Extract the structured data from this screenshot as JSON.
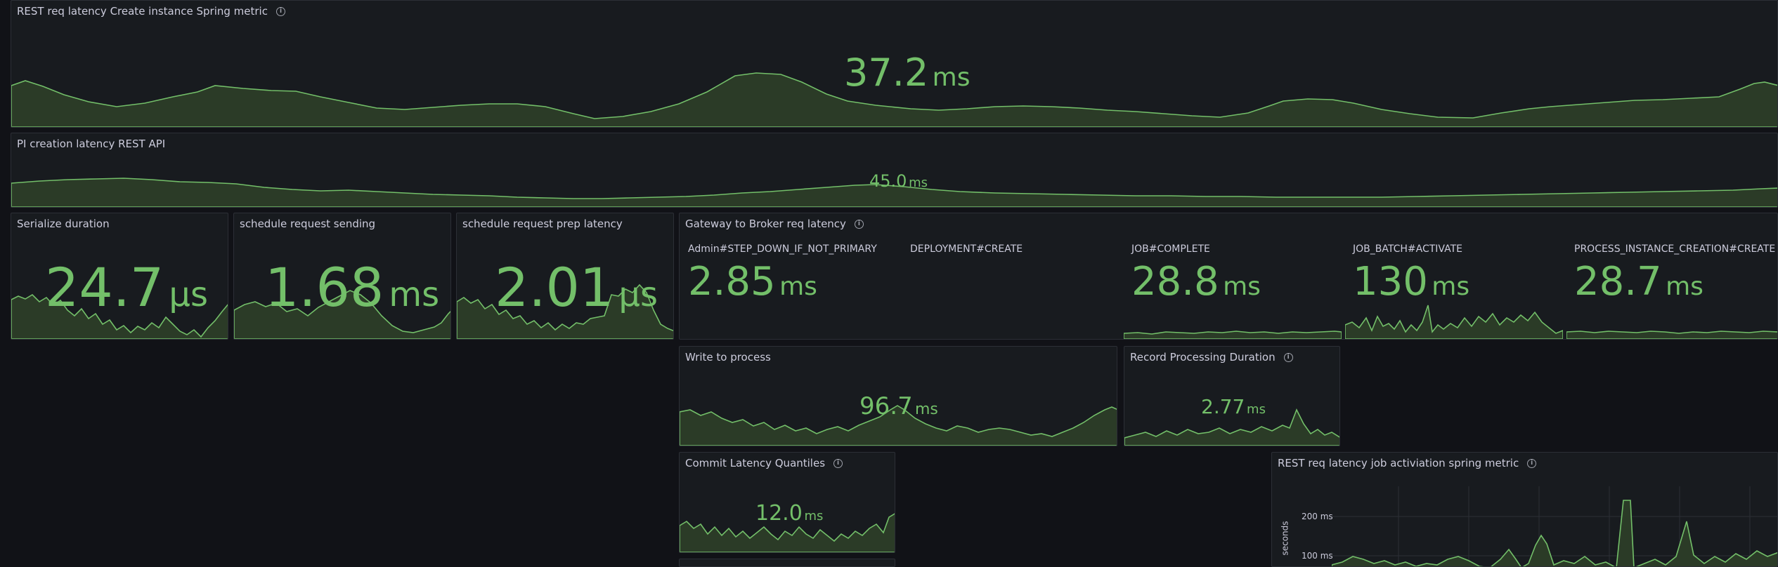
{
  "panels": {
    "create_instance": {
      "title": "REST req latency Create instance Spring metric",
      "value": "37.2",
      "unit": "ms"
    },
    "pi_creation": {
      "title": "PI creation latency REST API",
      "value": "45.0",
      "unit": "ms"
    },
    "serialize": {
      "title": "Serialize duration",
      "value": "24.7",
      "unit": "µs"
    },
    "schedule_sending": {
      "title": "schedule request sending",
      "value": "1.68",
      "unit": "ms"
    },
    "schedule_prep": {
      "title": "schedule request prep latency",
      "value": "2.01",
      "unit": "µs"
    },
    "gateway": {
      "title": "Gateway to Broker req latency",
      "items": [
        {
          "label": "Admin#STEP_DOWN_IF_NOT_PRIMARY",
          "value": "2.85",
          "unit": "ms"
        },
        {
          "label": "DEPLOYMENT#CREATE",
          "value": "",
          "unit": ""
        },
        {
          "label": "JOB#COMPLETE",
          "value": "28.8",
          "unit": "ms"
        },
        {
          "label": "JOB_BATCH#ACTIVATE",
          "value": "130",
          "unit": "ms"
        },
        {
          "label": "PROCESS_INSTANCE_CREATION#CREATE",
          "value": "28.7",
          "unit": "ms"
        }
      ]
    },
    "write_to_process": {
      "title": "Write to process",
      "value": "96.7",
      "unit": "ms"
    },
    "record_processing": {
      "title": "Record Processing Duration",
      "value": "2.77",
      "unit": "ms"
    },
    "commit_latency": {
      "title": "Commit Latency Quantiles",
      "value": "12.0",
      "unit": "ms"
    },
    "job_activation": {
      "title": "REST req latency job activiation spring metric",
      "ylabel": "seconds",
      "ticks": [
        "200 ms",
        "100 ms"
      ]
    }
  },
  "colors": {
    "accent": "#73bf69",
    "fill": "#2b3b27",
    "background": "#111217",
    "panel": "#181b1f"
  }
}
